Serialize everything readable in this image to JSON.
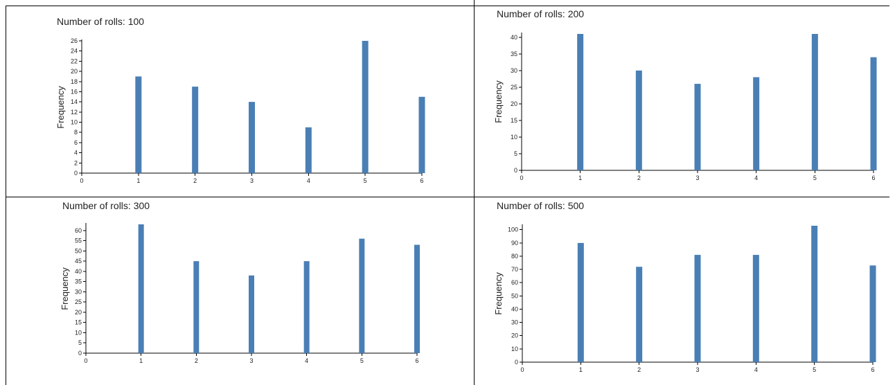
{
  "colors": {
    "bar": "#4a7fb5",
    "axis": "#000000",
    "border": "#000000"
  },
  "chart_data": [
    {
      "type": "bar",
      "title": "Number of rolls: 100",
      "ylabel": "Frequency",
      "xlabel": "",
      "xlim": [
        0,
        6
      ],
      "xticks": [
        "0",
        "1",
        "2",
        "3",
        "4",
        "5",
        "6"
      ],
      "categories": [
        "1",
        "2",
        "3",
        "4",
        "5",
        "6"
      ],
      "values": [
        19,
        17,
        14,
        9,
        26,
        15
      ],
      "ylim": [
        0,
        26
      ],
      "yticks": [
        0,
        2,
        4,
        6,
        8,
        10,
        12,
        14,
        16,
        18,
        20,
        22,
        24,
        26
      ]
    },
    {
      "type": "bar",
      "title": "Number of rolls: 200",
      "ylabel": "Frequency",
      "xlabel": "",
      "xlim": [
        0,
        6
      ],
      "xticks": [
        "0",
        "1",
        "2",
        "3",
        "4",
        "5",
        "6"
      ],
      "categories": [
        "1",
        "2",
        "3",
        "4",
        "5",
        "6"
      ],
      "values": [
        41,
        30,
        26,
        28,
        41,
        34
      ],
      "ylim": [
        0,
        41
      ],
      "yticks": [
        0,
        5,
        10,
        15,
        20,
        25,
        30,
        35,
        40
      ]
    },
    {
      "type": "bar",
      "title": "Number of rolls: 300",
      "ylabel": "Frequency",
      "xlabel": "",
      "xlim": [
        0,
        6
      ],
      "xticks": [
        "0",
        "1",
        "2",
        "3",
        "4",
        "5",
        "6"
      ],
      "categories": [
        "1",
        "2",
        "3",
        "4",
        "5",
        "6"
      ],
      "values": [
        63,
        45,
        38,
        45,
        56,
        53
      ],
      "ylim": [
        0,
        63
      ],
      "yticks": [
        0,
        5,
        10,
        15,
        20,
        25,
        30,
        35,
        40,
        45,
        50,
        55,
        60
      ]
    },
    {
      "type": "bar",
      "title": "Number of rolls: 500",
      "ylabel": "Frequency",
      "xlabel": "",
      "xlim": [
        0,
        6
      ],
      "xticks": [
        "0",
        "1",
        "2",
        "3",
        "4",
        "5",
        "6"
      ],
      "categories": [
        "1",
        "2",
        "3",
        "4",
        "5",
        "6"
      ],
      "values": [
        90,
        72,
        81,
        81,
        103,
        73
      ],
      "ylim": [
        0,
        103
      ],
      "yticks": [
        0,
        10,
        20,
        30,
        40,
        50,
        60,
        70,
        80,
        90,
        100
      ]
    }
  ]
}
